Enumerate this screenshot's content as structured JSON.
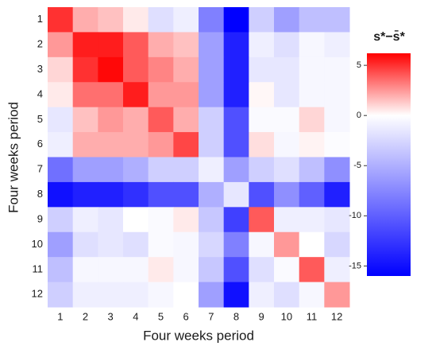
{
  "chart_data": {
    "type": "heatmap",
    "xlabel": "Four weeks period",
    "ylabel": "Four weeks period",
    "colorbar_title": "s*−s̄*",
    "x": [
      "1",
      "2",
      "3",
      "4",
      "5",
      "6",
      "7",
      "8",
      "9",
      "10",
      "11",
      "12"
    ],
    "y": [
      "1",
      "2",
      "3",
      "4",
      "5",
      "6",
      "7",
      "8",
      "9",
      "10",
      "11",
      "12"
    ],
    "z": [
      [
        5,
        2,
        1.5,
        0.5,
        -2,
        -1,
        -8,
        -16,
        -3,
        -6,
        -4,
        -4
      ],
      [
        2.5,
        5.5,
        5.5,
        4,
        2,
        1.5,
        -6,
        -14,
        -1,
        -2,
        -0.5,
        -1
      ],
      [
        1,
        5,
        6,
        4,
        3,
        2,
        -6,
        -14,
        -1.5,
        -1.5,
        -0.5,
        -0.5
      ],
      [
        0.5,
        3.5,
        3.5,
        5.5,
        2.5,
        2.5,
        -6,
        -14,
        0.2,
        -1.5,
        -0.5,
        -0.5
      ],
      [
        -1.5,
        1.5,
        2.5,
        2,
        4,
        2,
        -3,
        -11,
        -0.3,
        -0.3,
        1,
        -0.5
      ],
      [
        -1,
        2,
        2,
        2,
        2.5,
        4.5,
        -3,
        -11,
        0.8,
        -0.5,
        0.3,
        -0.2
      ],
      [
        -9,
        -6,
        -6,
        -5,
        -3,
        -3,
        -1,
        -6,
        -3,
        -2,
        -4,
        -7
      ],
      [
        -15,
        -14,
        -14,
        -13,
        -11,
        -11,
        -5,
        -1.5,
        -11,
        -7,
        -10,
        -14
      ],
      [
        -3,
        -1,
        -1.5,
        0,
        -0.3,
        0.5,
        -3.5,
        -12,
        4,
        -1,
        -1,
        -1.5
      ],
      [
        -6,
        -2,
        -1.5,
        -2,
        -0.3,
        -0.5,
        -2.5,
        -8,
        -0.5,
        2.5,
        0,
        -2.5
      ],
      [
        -4,
        -0.5,
        -0.5,
        -0.5,
        0.5,
        -0.5,
        -3.5,
        -11,
        -2,
        -0.3,
        4,
        -1
      ],
      [
        -3,
        -1,
        -1,
        -1,
        -0.5,
        0,
        -6,
        -15,
        -1,
        -2,
        -0.5,
        2.5
      ]
    ],
    "zlim": [
      -16,
      6.2
    ],
    "zticks": [
      5,
      0,
      -5,
      -10,
      -15
    ],
    "colors": {
      "low": "#0000ff",
      "mid": "#ffffff",
      "high": "#ff0000"
    }
  }
}
